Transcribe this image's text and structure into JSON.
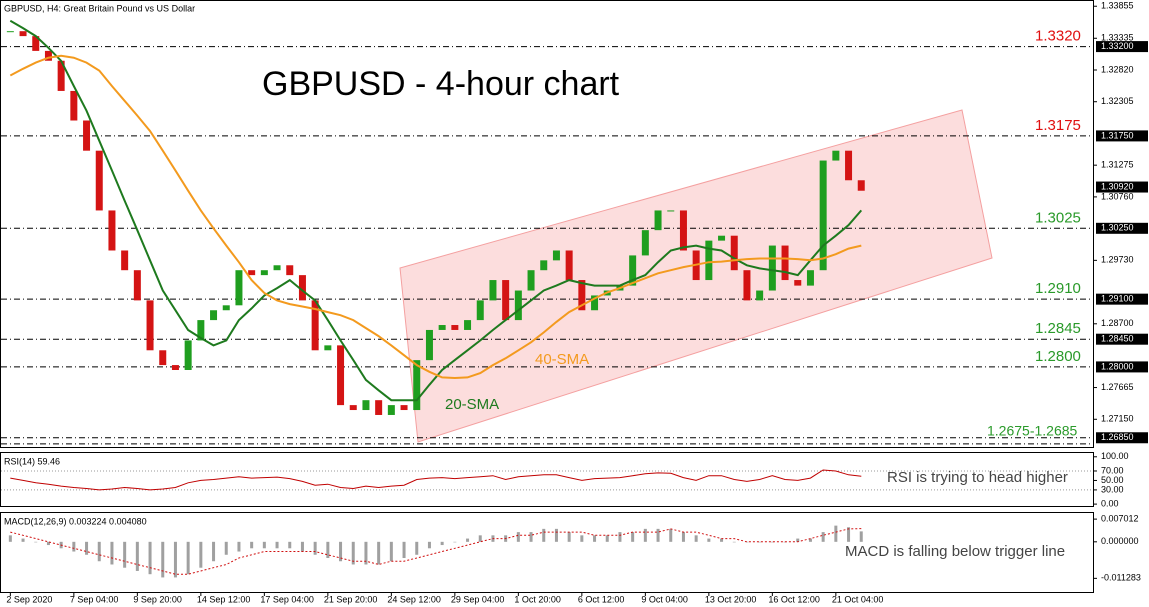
{
  "chart_data": [
    {
      "type": "candlestick",
      "title": "GBPUSD - 4-hour chart",
      "subtitle": "GBPUSD, H4:  Great Britain Pound vs US Dollar",
      "categories": [
        "2 Sep 2020",
        null,
        null,
        null,
        null,
        "7 Sep 04:00",
        null,
        null,
        null,
        null,
        "9 Sep 20:00",
        null,
        null,
        null,
        null,
        "14 Sep 12:00",
        null,
        null,
        null,
        null,
        "17 Sep 04:00",
        null,
        null,
        null,
        null,
        "21 Sep 20:00",
        null,
        null,
        null,
        null,
        "24 Sep 12:00",
        null,
        null,
        null,
        null,
        "29 Sep 04:00",
        null,
        null,
        null,
        null,
        "1 Oct 20:00",
        null,
        null,
        null,
        null,
        "6 Oct 12:00",
        null,
        null,
        null,
        null,
        "9 Oct 04:00",
        null,
        null,
        null,
        null,
        "13 Oct 20:00",
        null,
        null,
        null,
        null,
        "16 Oct 12:00",
        null,
        null,
        null,
        null,
        "21 Oct 04:00",
        null,
        null
      ],
      "values": [
        1.3345,
        1.3337,
        1.3313,
        1.3297,
        1.3248,
        1.32,
        1.3151,
        1.3054,
        1.2989,
        1.2957,
        1.2908,
        1.2827,
        1.2803,
        1.2795,
        1.2843,
        1.2876,
        1.2892,
        1.29,
        1.2957,
        1.2949,
        1.2957,
        1.2965,
        1.2949,
        1.2908,
        1.2827,
        1.2835,
        1.2738,
        1.273,
        1.2746,
        1.2722,
        1.2738,
        1.273,
        1.2811,
        1.286,
        1.2868,
        1.286,
        1.2876,
        1.2908,
        1.2941,
        1.2876,
        1.2924,
        1.2957,
        1.2973,
        1.2989,
        1.2941,
        1.2892,
        1.2916,
        1.2924,
        1.2932,
        1.2981,
        1.3022,
        1.3054,
        1.3054,
        1.2989,
        1.2941,
        1.3005,
        1.3013,
        1.2957,
        1.2908,
        1.2924,
        1.2997,
        1.2941,
        1.2932,
        1.2957,
        1.3135,
        1.3151,
        1.3103,
        1.3086
      ],
      "up_color": "#1f9e1f",
      "down_color": "#d41414",
      "series": [
        {
          "name": "20-SMA",
          "color": "#1e7a1e",
          "values": [
            1.3362,
            1.335,
            1.3337,
            1.3318,
            1.3297,
            1.3256,
            1.3216,
            1.3167,
            1.3119,
            1.307,
            1.3022,
            1.2973,
            1.2924,
            1.2892,
            1.286,
            1.2847,
            1.2835,
            1.2843,
            1.2876,
            1.2895,
            1.2916,
            1.2928,
            1.2941,
            1.2924,
            1.2908,
            1.2876,
            1.2843,
            1.2811,
            1.2779,
            1.2762,
            1.2746,
            1.2746,
            1.2746,
            1.2771,
            1.2795,
            1.2811,
            1.2827,
            1.2843,
            1.286,
            1.2876,
            1.2892,
            1.2908,
            1.2924,
            1.2932,
            1.2941,
            1.2936,
            1.2932,
            1.2932,
            1.2932,
            1.2941,
            1.2949,
            1.297,
            1.2989,
            1.2994,
            1.2997,
            1.2992,
            1.2989,
            1.2976,
            1.2965,
            1.296,
            1.2957,
            1.2954,
            1.2949,
            1.2973,
            1.2997,
            1.3013,
            1.303,
            1.3054
          ]
        },
        {
          "name": "40-SMA",
          "color": "#f39a1e",
          "values": [
            1.3273,
            1.3284,
            1.3294,
            1.3302,
            1.3305,
            1.3302,
            1.3294,
            1.3281,
            1.3256,
            1.3232,
            1.3208,
            1.3183,
            1.3151,
            1.3119,
            1.3086,
            1.3054,
            1.3025,
            1.2997,
            1.297,
            1.2941,
            1.292,
            1.2908,
            1.2902,
            1.2898,
            1.2894,
            1.2889,
            1.2884,
            1.2876,
            1.2863,
            1.285,
            1.2835,
            1.2819,
            1.2803,
            1.2792,
            1.2783,
            1.2782,
            1.2783,
            1.279,
            1.2803,
            1.2814,
            1.2827,
            1.284,
            1.2856,
            1.2873,
            1.2889,
            1.29,
            1.2911,
            1.2921,
            1.2928,
            1.2936,
            1.2944,
            1.2952,
            1.2957,
            1.2962,
            1.2966,
            1.297,
            1.2971,
            1.2973,
            1.2975,
            1.2976,
            1.2976,
            1.2976,
            1.2975,
            1.2973,
            1.2976,
            1.2983,
            1.2992,
            1.2997
          ]
        }
      ],
      "ylim": [
        1.267,
        1.3394
      ],
      "yticks": [
        1.33855,
        1.33335,
        {
          "value": 1.3282,
          "label": "1.32820"
        },
        1.32305,
        1.31275,
        {
          "value": 1.3076,
          "label": "1.30760"
        },
        {
          "value": 1.2973,
          "label": "1.29730"
        },
        {
          "value": 1.287,
          "label": "1.28700"
        },
        1.27665,
        {
          "value": 1.2715,
          "label": "1.27150"
        }
      ],
      "price_tags": [
        {
          "value": 1.332,
          "label": "1.33200"
        },
        {
          "value": 1.3175,
          "label": "1.31750"
        },
        {
          "value": 1.3092,
          "label": "1.30920"
        },
        {
          "value": 1.3025,
          "label": "1.30250"
        },
        {
          "value": 1.291,
          "label": "1.29100"
        },
        {
          "value": 1.2845,
          "label": "1.28450"
        },
        {
          "value": 1.28,
          "label": "1.28000"
        },
        {
          "value": 1.2685,
          "label": "1.26850"
        }
      ],
      "levels": [
        {
          "value": 1.332,
          "label": "1.3320",
          "color": "#e01010"
        },
        {
          "value": 1.3175,
          "label": "1.3175",
          "color": "#e01010"
        },
        {
          "value": 1.3025,
          "label": "1.3025",
          "color": "#2a9a2a"
        },
        {
          "value": 1.291,
          "label": "1.2910",
          "color": "#2a9a2a"
        },
        {
          "value": 1.2845,
          "label": "1.2845",
          "color": "#2a9a2a"
        },
        {
          "value": 1.28,
          "label": "1.2800",
          "color": "#2a9a2a"
        }
      ],
      "range_level": {
        "label": "1.2675-1.2685",
        "values": [
          1.2675,
          1.2685
        ],
        "color": "#2a9a2a"
      }
    },
    {
      "type": "line",
      "title": "RSI(14) 59.46",
      "annotation": "RSI is trying to head higher",
      "color": "#c00000",
      "values": [
        55,
        50,
        45,
        42,
        38,
        35,
        33,
        30,
        32,
        35,
        33,
        30,
        32,
        35,
        45,
        50,
        52,
        55,
        58,
        55,
        56,
        57,
        54,
        48,
        40,
        42,
        35,
        33,
        38,
        35,
        38,
        40,
        52,
        55,
        56,
        54,
        56,
        58,
        60,
        52,
        58,
        60,
        62,
        62,
        56,
        50,
        54,
        55,
        56,
        60,
        64,
        66,
        65,
        56,
        50,
        60,
        60,
        52,
        48,
        52,
        60,
        52,
        50,
        55,
        72,
        70,
        62,
        59
      ],
      "ylim": [
        -4,
        108
      ],
      "yticks": [
        {
          "value": 100,
          "label": "100.00"
        },
        {
          "value": 70,
          "label": "70.00"
        },
        {
          "value": 50,
          "label": "50.00"
        },
        {
          "value": 30,
          "label": "30.00"
        },
        {
          "value": 0,
          "label": "0.00"
        }
      ],
      "dotted_levels": [
        70,
        30
      ]
    },
    {
      "type": "bar",
      "title": "MACD(12,26,9) 0.003224 0.004080",
      "annotation": "MACD is falling below trigger line",
      "color": "#a0a0a0",
      "values": [
        0.002,
        0.001,
        0.0,
        -0.001,
        -0.002,
        -0.003,
        -0.004,
        -0.006,
        -0.007,
        -0.008,
        -0.009,
        -0.01,
        -0.011,
        -0.011,
        -0.01,
        -0.008,
        -0.006,
        -0.004,
        -0.003,
        -0.002,
        -0.002,
        -0.002,
        -0.002,
        -0.003,
        -0.004,
        -0.005,
        -0.006,
        -0.007,
        -0.007,
        -0.007,
        -0.006,
        -0.005,
        -0.004,
        -0.002,
        -0.001,
        0.0,
        0.001,
        0.002,
        0.002,
        0.002,
        0.003,
        0.003,
        0.004,
        0.004,
        0.003,
        0.002,
        0.002,
        0.002,
        0.003,
        0.003,
        0.004,
        0.004,
        0.004,
        0.003,
        0.002,
        0.001,
        0.001,
        0.0,
        0.0,
        0.0,
        0.0,
        0.0,
        0.001,
        0.001,
        0.003,
        0.005,
        0.0045,
        0.003224
      ],
      "series": [
        {
          "color": "#d01010",
          "values": [
            0.003,
            0.002,
            0.001,
            0.0,
            -0.001,
            -0.002,
            -0.003,
            -0.004,
            -0.005,
            -0.006,
            -0.007,
            -0.008,
            -0.009,
            -0.01,
            -0.01,
            -0.009,
            -0.008,
            -0.007,
            -0.005,
            -0.004,
            -0.003,
            -0.003,
            -0.003,
            -0.003,
            -0.003,
            -0.004,
            -0.005,
            -0.006,
            -0.006,
            -0.007,
            -0.006,
            -0.006,
            -0.005,
            -0.004,
            -0.003,
            -0.002,
            -0.001,
            0.0,
            0.001,
            0.001,
            0.002,
            0.002,
            0.003,
            0.003,
            0.003,
            0.003,
            0.002,
            0.002,
            0.002,
            0.003,
            0.003,
            0.003,
            0.004,
            0.003,
            0.003,
            0.002,
            0.001,
            0.001,
            0.0,
            0.0,
            0.0,
            0.0,
            0.0,
            0.001,
            0.002,
            0.003,
            0.004,
            0.00408
          ]
        }
      ],
      "ylim": [
        -0.0155,
        0.0089
      ],
      "yticks": [
        0.007012,
        {
          "value": 0,
          "label": "0.000000"
        },
        -0.011283
      ]
    }
  ]
}
